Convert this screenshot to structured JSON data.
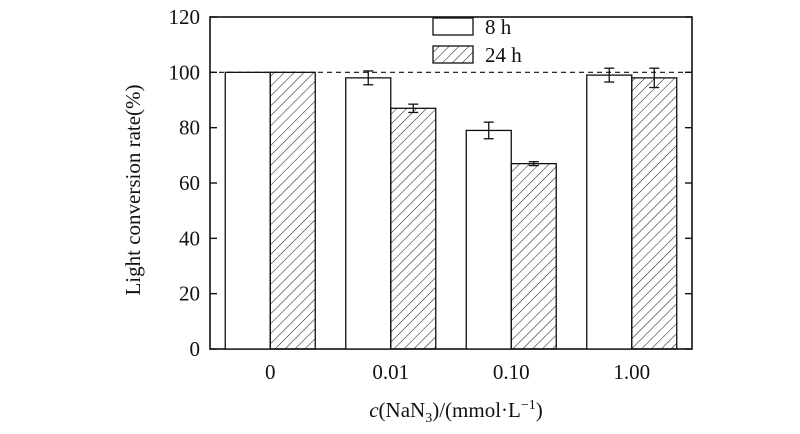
{
  "chart_data": {
    "type": "bar",
    "categories": [
      "0",
      "0.01",
      "0.10",
      "1.00"
    ],
    "series": [
      {
        "name": "8 h",
        "values": [
          100,
          98,
          79,
          99
        ],
        "errors": [
          0,
          2.5,
          3,
          2.5
        ],
        "fill": "none"
      },
      {
        "name": "24 h",
        "values": [
          100,
          87,
          67,
          98
        ],
        "errors": [
          0,
          1.5,
          0.7,
          3.5
        ],
        "fill": "hatch"
      }
    ],
    "title": "",
    "ylabel": "Light conversion rate(%)",
    "xlabel_parts": {
      "c": "c",
      "rest1": "(NaN",
      "sub": "3",
      "rest2": ")/(mmol·L",
      "sup": "−1",
      "rest3": ")"
    },
    "ylim": [
      0,
      120
    ],
    "yticks": [
      0,
      20,
      40,
      60,
      80,
      100,
      120
    ],
    "reference_line": 100,
    "legend_position": "top-center"
  }
}
